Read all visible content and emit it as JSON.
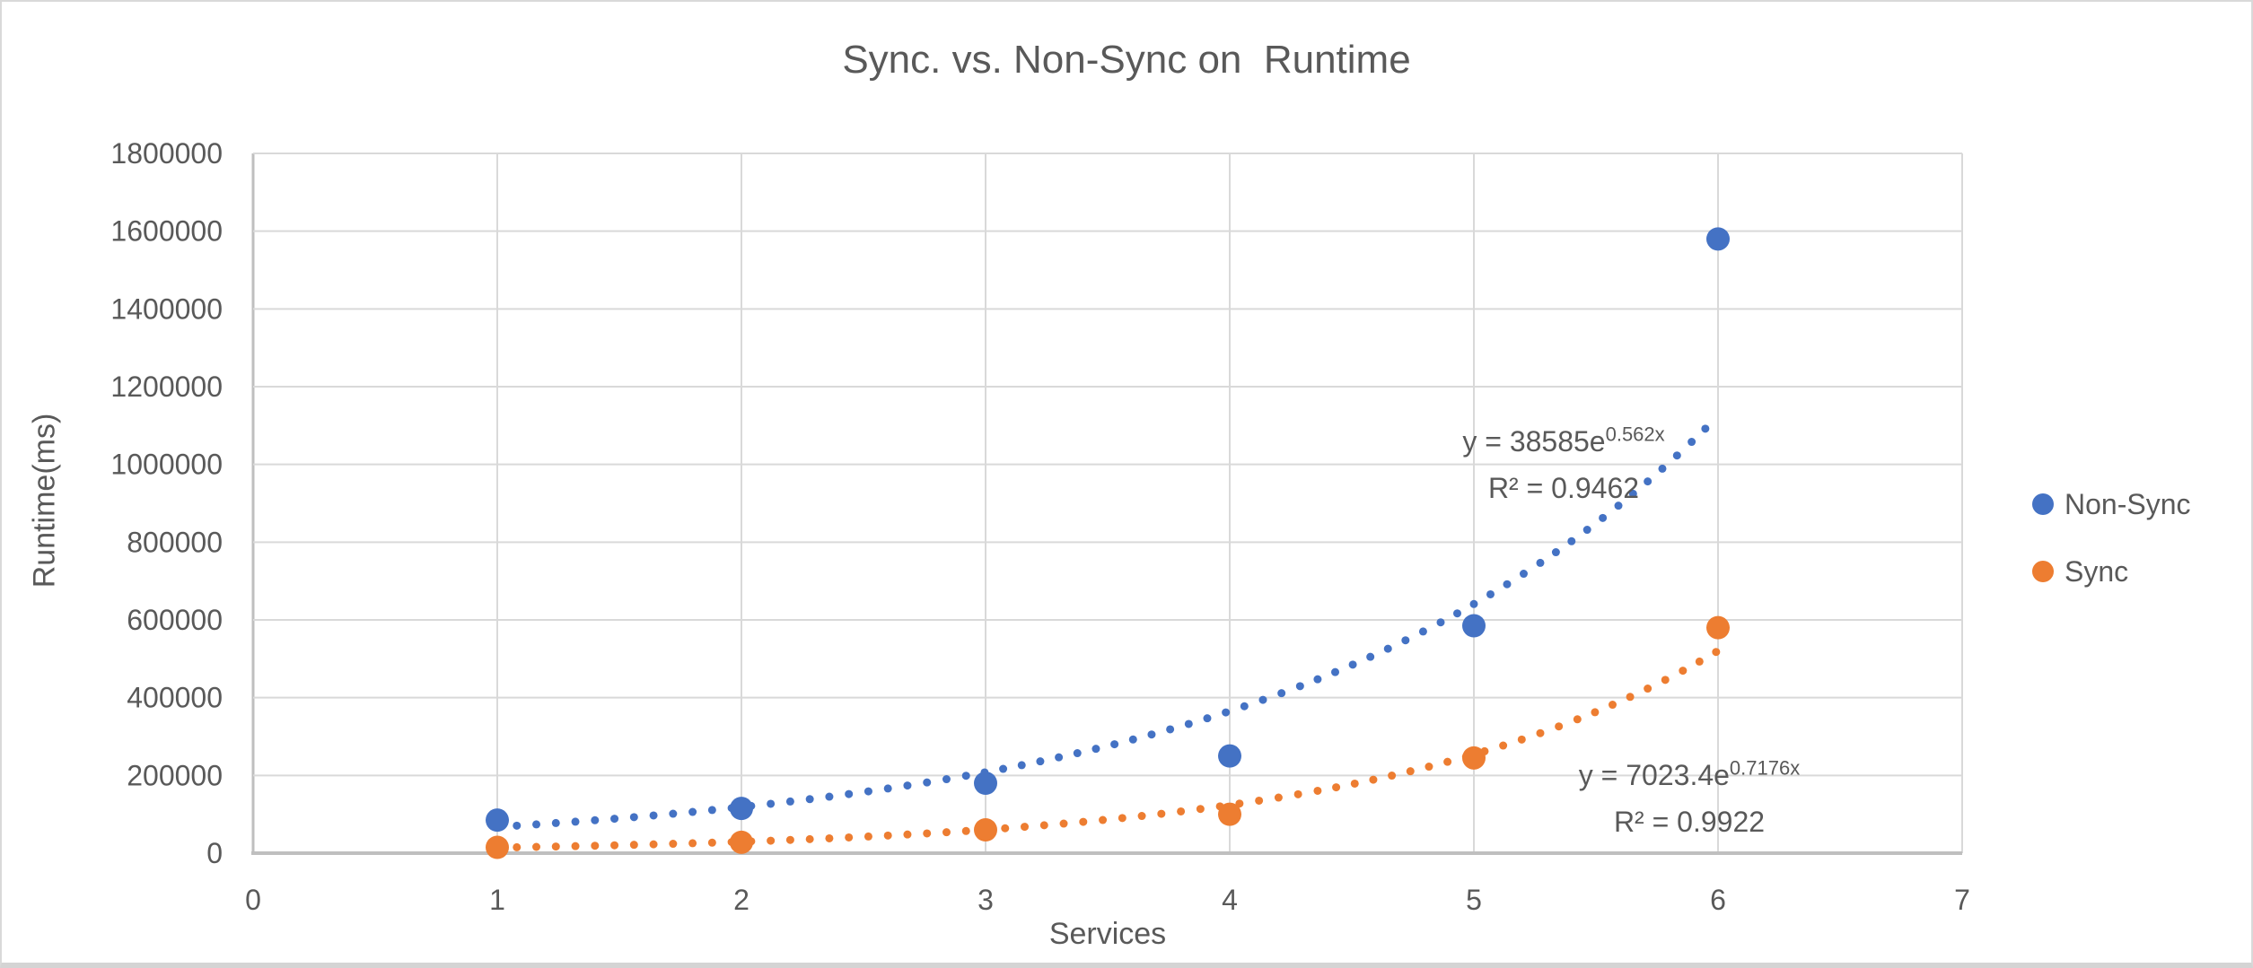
{
  "chart_data": {
    "type": "scatter",
    "title": "Sync. vs. Non-Sync on  Runtime",
    "xlabel": "Services",
    "ylabel": "Runtime(ms)",
    "xlim": [
      0,
      7
    ],
    "ylim": [
      0,
      1800000
    ],
    "x_ticks": [
      0,
      1,
      2,
      3,
      4,
      5,
      6,
      7
    ],
    "y_ticks": [
      0,
      200000,
      400000,
      600000,
      800000,
      1000000,
      1200000,
      1400000,
      1600000,
      1800000
    ],
    "grid": true,
    "legend_position": "right",
    "x": [
      1,
      2,
      3,
      4,
      5,
      6
    ],
    "series": [
      {
        "name": "Non-Sync",
        "color": "#4472C4",
        "values": [
          85000,
          115000,
          180000,
          250000,
          585000,
          1580000
        ],
        "trendline": {
          "type": "exponential",
          "a": 38585,
          "b": 0.562,
          "x_range": [
            1,
            6
          ],
          "eq_base": "y = 38585e",
          "eq_exponent": "0.562x",
          "r2_label": "R² = 0.9462"
        }
      },
      {
        "name": "Sync",
        "color": "#ED7D31",
        "values": [
          15000,
          28000,
          60000,
          100000,
          245000,
          580000
        ],
        "trendline": {
          "type": "exponential",
          "a": 7023.4,
          "b": 0.7176,
          "x_range": [
            1,
            6
          ],
          "eq_base": "y = 7023.4e",
          "eq_exponent": "0.7176x",
          "r2_label": "R² = 0.9922"
        }
      }
    ]
  },
  "colors": {
    "text": "#595959",
    "gridline": "#D9D9D9",
    "axis_line": "#BFBFBF",
    "background": "#FFFFFF"
  }
}
